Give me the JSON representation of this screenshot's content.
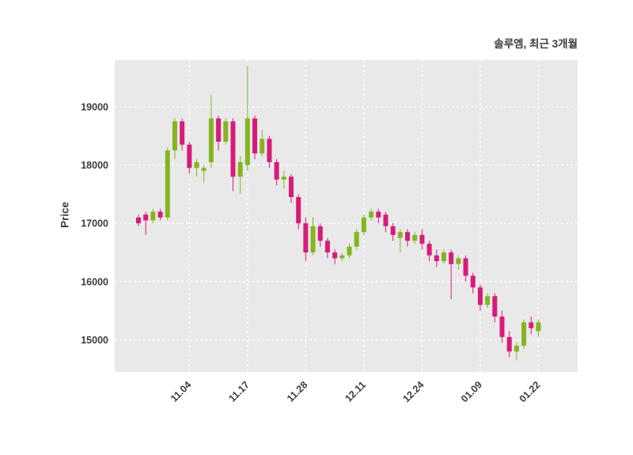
{
  "chart_data": {
    "type": "candlestick",
    "title": "솔루엠, 최근 3개월",
    "ylabel": "Price",
    "yticks": [
      15000,
      16000,
      17000,
      18000,
      19000
    ],
    "ylim": [
      14450,
      19800
    ],
    "xtick_labels": [
      "11.04",
      "11.17",
      "11.28",
      "12.11",
      "12.24",
      "01.09",
      "01.22"
    ],
    "xtick_indices": [
      7,
      15,
      23,
      31,
      39,
      47,
      55
    ],
    "grid": true,
    "legend": "none",
    "colors": {
      "up": "#85b520",
      "down": "#d81b7a",
      "plot_bg": "#e9e9e9",
      "grid": "#ffffff",
      "text": "#3c3c3c"
    },
    "ohlc": [
      [
        17100,
        17150,
        16950,
        17000
      ],
      [
        17150,
        17200,
        16800,
        17050
      ],
      [
        17050,
        17250,
        17000,
        17200
      ],
      [
        17200,
        17250,
        17050,
        17100
      ],
      [
        17100,
        18300,
        17050,
        18250
      ],
      [
        18250,
        18800,
        18100,
        18750
      ],
      [
        18750,
        18800,
        18250,
        18350
      ],
      [
        18350,
        18400,
        17850,
        17950
      ],
      [
        17950,
        18100,
        17800,
        18050
      ],
      [
        17900,
        18000,
        17700,
        17950
      ],
      [
        18050,
        19200,
        17950,
        18800
      ],
      [
        18800,
        18850,
        18250,
        18400
      ],
      [
        18400,
        18800,
        18350,
        18750
      ],
      [
        18750,
        18800,
        17550,
        17800
      ],
      [
        17800,
        18150,
        17500,
        18050
      ],
      [
        18000,
        19700,
        17900,
        18800
      ],
      [
        18800,
        18850,
        18100,
        18200
      ],
      [
        18200,
        18600,
        18150,
        18450
      ],
      [
        18450,
        18500,
        17950,
        18050
      ],
      [
        18050,
        18100,
        17650,
        17750
      ],
      [
        17750,
        17900,
        17600,
        17800
      ],
      [
        17800,
        17850,
        17350,
        17450
      ],
      [
        17450,
        17500,
        16900,
        17000
      ],
      [
        17000,
        17100,
        16350,
        16500
      ],
      [
        16500,
        17100,
        16450,
        16950
      ],
      [
        16950,
        17000,
        16600,
        16700
      ],
      [
        16700,
        16750,
        16400,
        16500
      ],
      [
        16500,
        16550,
        16300,
        16400
      ],
      [
        16400,
        16500,
        16350,
        16450
      ],
      [
        16450,
        16650,
        16400,
        16600
      ],
      [
        16600,
        16900,
        16550,
        16850
      ],
      [
        16850,
        17150,
        16800,
        17100
      ],
      [
        17100,
        17250,
        17050,
        17200
      ],
      [
        17200,
        17250,
        17000,
        17100
      ],
      [
        17150,
        17200,
        16850,
        16950
      ],
      [
        16950,
        17000,
        16700,
        16800
      ],
      [
        16750,
        16900,
        16500,
        16850
      ],
      [
        16850,
        16900,
        16600,
        16700
      ],
      [
        16700,
        16850,
        16650,
        16800
      ],
      [
        16800,
        16900,
        16550,
        16650
      ],
      [
        16650,
        16700,
        16350,
        16450
      ],
      [
        16450,
        16550,
        16250,
        16350
      ],
      [
        16350,
        16550,
        16300,
        16500
      ],
      [
        16500,
        16550,
        15700,
        16300
      ],
      [
        16300,
        16450,
        16200,
        16400
      ],
      [
        16400,
        16450,
        16000,
        16100
      ],
      [
        16100,
        16150,
        15800,
        15900
      ],
      [
        15900,
        15950,
        15500,
        15600
      ],
      [
        15600,
        15800,
        15550,
        15750
      ],
      [
        15750,
        15800,
        15300,
        15400
      ],
      [
        15400,
        15500,
        14950,
        15050
      ],
      [
        15050,
        15150,
        14700,
        14800
      ],
      [
        14800,
        14950,
        14650,
        14900
      ],
      [
        14900,
        15350,
        14850,
        15300
      ],
      [
        15300,
        15400,
        15100,
        15200
      ],
      [
        15150,
        15350,
        15050,
        15300
      ]
    ]
  }
}
